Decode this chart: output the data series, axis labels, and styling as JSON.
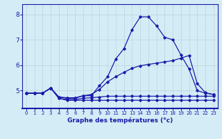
{
  "title": "Graphe des températures (°c)",
  "xlim": [
    -0.5,
    23.5
  ],
  "ylim": [
    4.3,
    8.4
  ],
  "xticks": [
    0,
    1,
    2,
    3,
    4,
    5,
    6,
    7,
    8,
    9,
    10,
    11,
    12,
    13,
    14,
    15,
    16,
    17,
    18,
    19,
    20,
    21,
    22,
    23
  ],
  "yticks": [
    5,
    6,
    7,
    8
  ],
  "background_color": "#d4ecf5",
  "grid_color": "#b8d4de",
  "line_color": "#1a1aaa",
  "line1_x": [
    0,
    1,
    2,
    3,
    4,
    5,
    6,
    7,
    8,
    9,
    10,
    11,
    12,
    13,
    14,
    15,
    16,
    17,
    18,
    19,
    20,
    21,
    22,
    23
  ],
  "line1_y": [
    4.9,
    4.9,
    4.9,
    5.1,
    4.75,
    4.7,
    4.7,
    4.8,
    4.8,
    5.2,
    5.55,
    6.25,
    6.65,
    7.4,
    7.9,
    7.9,
    7.55,
    7.1,
    7.0,
    6.4,
    5.85,
    5.0,
    4.9,
    4.85
  ],
  "line2_x": [
    0,
    1,
    2,
    3,
    4,
    5,
    6,
    7,
    8,
    9,
    10,
    11,
    12,
    13,
    14,
    15,
    16,
    17,
    18,
    19,
    20,
    21,
    22,
    23
  ],
  "line2_y": [
    4.9,
    4.9,
    4.9,
    5.1,
    4.75,
    4.72,
    4.72,
    4.8,
    4.85,
    5.05,
    5.35,
    5.55,
    5.72,
    5.88,
    5.98,
    6.03,
    6.08,
    6.13,
    6.18,
    6.28,
    6.38,
    5.28,
    4.92,
    4.85
  ],
  "line3_x": [
    0,
    1,
    2,
    3,
    4,
    5,
    6,
    7,
    8,
    9,
    10,
    11,
    12,
    13,
    14,
    15,
    16,
    17,
    18,
    19,
    20,
    21,
    22,
    23
  ],
  "line3_y": [
    4.9,
    4.9,
    4.9,
    5.1,
    4.7,
    4.65,
    4.65,
    4.7,
    4.72,
    4.75,
    4.78,
    4.78,
    4.78,
    4.78,
    4.78,
    4.78,
    4.78,
    4.78,
    4.78,
    4.78,
    4.78,
    4.78,
    4.78,
    4.78
  ],
  "line4_x": [
    0,
    1,
    2,
    3,
    4,
    5,
    6,
    7,
    8,
    9,
    10,
    11,
    12,
    13,
    14,
    15,
    16,
    17,
    18,
    19,
    20,
    21,
    22,
    23
  ],
  "line4_y": [
    4.9,
    4.9,
    4.9,
    5.1,
    4.7,
    4.62,
    4.62,
    4.62,
    4.62,
    4.62,
    4.62,
    4.62,
    4.62,
    4.62,
    4.62,
    4.62,
    4.62,
    4.62,
    4.62,
    4.62,
    4.62,
    4.62,
    4.62,
    4.62
  ]
}
